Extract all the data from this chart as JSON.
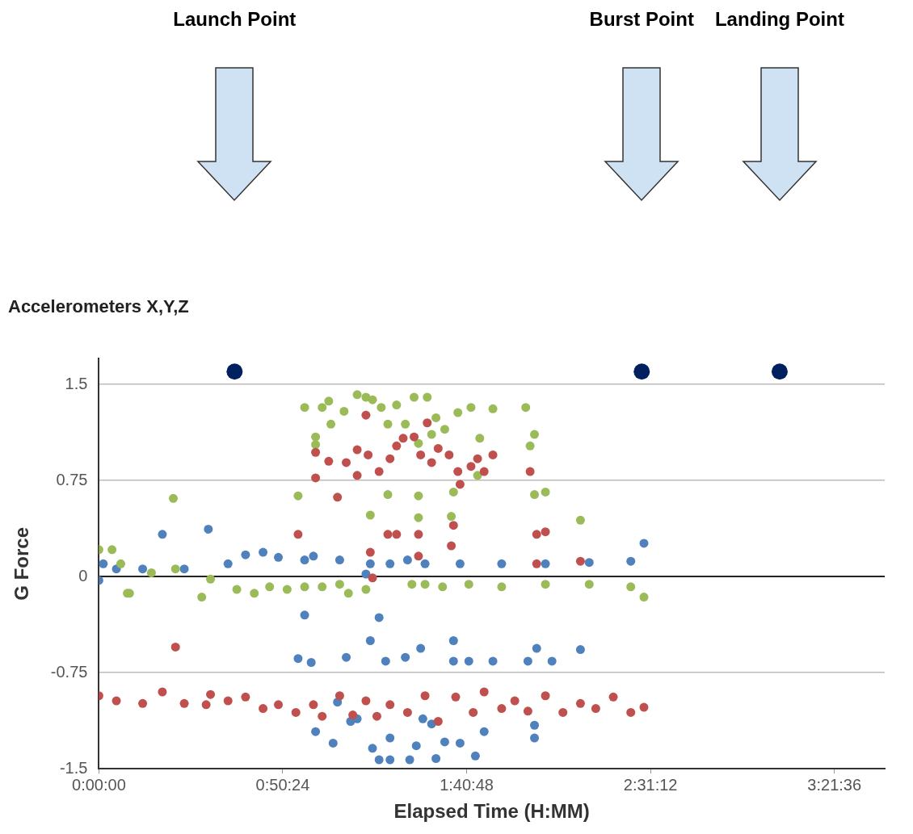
{
  "chart_data": {
    "type": "scatter",
    "title": "Accelerometers X,Y,Z",
    "xlabel": "Elapsed Time (H:MM)",
    "ylabel": "G Force",
    "xlim": [
      0,
      3.59
    ],
    "ylim": [
      -1.5,
      1.7
    ],
    "xticks": [
      {
        "value": 0,
        "label": "0:00:00"
      },
      {
        "value": 0.84,
        "label": "0:50:24"
      },
      {
        "value": 1.68,
        "label": "1:40:48"
      },
      {
        "value": 2.52,
        "label": "2:31:12"
      },
      {
        "value": 3.36,
        "label": "3:21:36"
      }
    ],
    "yticks": [
      {
        "value": -1.5,
        "label": "-1.5"
      },
      {
        "value": -0.75,
        "label": "-0.75"
      },
      {
        "value": 0,
        "label": "0"
      },
      {
        "value": 0.75,
        "label": "0.75"
      },
      {
        "value": 1.5,
        "label": "1.5"
      }
    ],
    "grid": "y",
    "marker": "circle",
    "legend": false,
    "annotations": [
      "Launch Point",
      "Burst Point",
      "Landing Point"
    ],
    "series": [
      {
        "color": "#c0504d",
        "x": [
          0,
          0.08,
          0.2,
          0.29,
          0.39,
          0.49,
          0.51,
          0.59,
          0.67,
          0.75,
          0.82,
          0.9,
          0.98,
          1.02,
          1.1,
          1.16,
          1.22,
          1.27,
          1.33,
          1.41,
          1.49,
          1.55,
          1.63,
          1.71,
          1.76,
          1.84,
          1.9,
          1.96,
          2.04,
          2.12,
          2.2,
          2.27,
          2.35,
          2.43,
          2.49,
          0.35,
          0.99,
          0.99,
          1.05,
          1.13,
          1.18,
          1.18,
          1.23,
          1.22,
          1.28,
          1.33,
          1.36,
          1.39,
          1.44,
          1.47,
          1.5,
          1.52,
          1.55,
          1.6,
          1.64,
          1.65,
          1.7,
          1.73,
          1.76,
          1.8,
          1.97,
          0.91,
          1.09,
          1.32,
          1.36,
          1.46,
          1.62,
          1.61,
          1.24,
          1.25,
          1.46,
          2.0,
          2.04,
          2.0,
          2.2
        ],
        "values": [
          -0.93,
          -0.97,
          -0.99,
          -0.9,
          -0.99,
          -1.0,
          -0.92,
          -0.97,
          -0.94,
          -1.03,
          -1.0,
          -1.06,
          -1.0,
          -1.09,
          -0.93,
          -1.08,
          -0.97,
          -1.09,
          -1.0,
          -1.06,
          -0.93,
          -1.13,
          -0.94,
          -1.06,
          -0.9,
          -1.03,
          -0.97,
          -1.05,
          -0.93,
          -1.06,
          -0.99,
          -1.03,
          -0.94,
          -1.06,
          -1.02,
          -0.55,
          0.97,
          0.77,
          0.9,
          0.89,
          0.99,
          0.79,
          0.95,
          1.26,
          0.82,
          0.92,
          1.02,
          1.08,
          1.09,
          0.95,
          1.2,
          0.89,
          1.0,
          0.95,
          0.82,
          0.72,
          0.86,
          0.92,
          0.82,
          0.95,
          0.82,
          0.33,
          0.62,
          0.33,
          0.33,
          0.33,
          0.4,
          0.24,
          0.19,
          -0.01,
          0.16,
          0.33,
          0.35,
          0.1,
          0.12
        ]
      },
      {
        "color": "#9bbb59",
        "x": [
          0,
          0.06,
          0.1,
          0.14,
          0.24,
          0.35,
          0.47,
          0.51,
          0.63,
          0.71,
          0.78,
          0.86,
          0.94,
          1.02,
          1.1,
          1.14,
          1.22,
          1.43,
          1.49,
          1.57,
          1.69,
          1.84,
          2.04,
          2.24,
          2.43,
          2.49,
          0.34,
          0.13,
          0.94,
          1.02,
          1.05,
          0.99,
          0.99,
          1.06,
          1.12,
          1.18,
          1.22,
          1.25,
          1.29,
          1.32,
          1.36,
          1.4,
          1.44,
          1.46,
          1.5,
          1.54,
          1.52,
          1.58,
          1.64,
          1.7,
          1.74,
          1.8,
          1.73,
          1.95,
          1.99,
          1.97,
          0.91,
          1.24,
          1.32,
          1.46,
          1.46,
          1.62,
          1.61,
          1.99,
          2.04,
          2.2
        ],
        "values": [
          0.21,
          0.21,
          0.1,
          -0.13,
          0.03,
          0.06,
          -0.16,
          -0.02,
          -0.1,
          -0.13,
          -0.08,
          -0.1,
          -0.08,
          -0.08,
          -0.06,
          -0.13,
          -0.1,
          -0.06,
          -0.06,
          -0.08,
          -0.06,
          -0.08,
          -0.06,
          -0.06,
          -0.08,
          -0.16,
          0.61,
          -0.13,
          1.32,
          1.32,
          1.37,
          1.09,
          1.03,
          1.19,
          1.29,
          1.42,
          1.4,
          1.38,
          1.32,
          1.19,
          1.34,
          1.19,
          1.4,
          1.04,
          1.4,
          1.24,
          1.11,
          1.15,
          1.28,
          1.32,
          1.08,
          1.31,
          0.79,
          1.32,
          1.11,
          1.02,
          0.63,
          0.48,
          0.64,
          0.63,
          0.46,
          0.66,
          0.47,
          0.64,
          0.66,
          0.44
        ]
      },
      {
        "color": "#4f81bd",
        "x": [
          0,
          0.02,
          0.08,
          0.2,
          0.29,
          0.39,
          0.5,
          0.59,
          0.67,
          0.75,
          0.82,
          0.94,
          0.98,
          1.1,
          1.22,
          1.24,
          1.33,
          1.41,
          1.49,
          1.65,
          1.84,
          2.04,
          2.24,
          2.43,
          2.49,
          0.94,
          1.28,
          0.91,
          0.97,
          1.13,
          1.24,
          1.31,
          1.4,
          1.47,
          1.62,
          1.69,
          1.8,
          1.96,
          1.62,
          2.0,
          2.07,
          2.2,
          0.99,
          1.07,
          1.15,
          1.25,
          1.28,
          1.33,
          1.33,
          1.42,
          1.45,
          1.54,
          1.58,
          1.65,
          1.72,
          1.76,
          1.99,
          1.99,
          1.09,
          1.18,
          1.48,
          1.52
        ],
        "values": [
          -0.03,
          0.1,
          0.06,
          0.06,
          0.33,
          0.06,
          0.37,
          0.1,
          0.17,
          0.19,
          0.15,
          0.13,
          0.16,
          0.13,
          0.02,
          0.1,
          0.1,
          0.13,
          0.1,
          0.1,
          0.1,
          0.1,
          0.11,
          0.12,
          0.26,
          -0.3,
          -0.32,
          -0.64,
          -0.67,
          -0.63,
          -0.5,
          -0.66,
          -0.63,
          -0.56,
          -0.5,
          -0.66,
          -0.66,
          -0.66,
          -0.66,
          -0.56,
          -0.66,
          -0.57,
          -1.21,
          -1.3,
          -1.13,
          -1.34,
          -1.43,
          -1.43,
          -1.26,
          -1.43,
          -1.32,
          -1.42,
          -1.29,
          -1.3,
          -1.4,
          -1.21,
          -1.26,
          -1.16,
          -0.98,
          -1.11,
          -1.11,
          -1.15
        ]
      },
      {
        "color": "#002060",
        "x": [
          0.62,
          2.48,
          3.11
        ],
        "values": [
          1.6,
          1.6,
          1.6
        ]
      }
    ]
  }
}
